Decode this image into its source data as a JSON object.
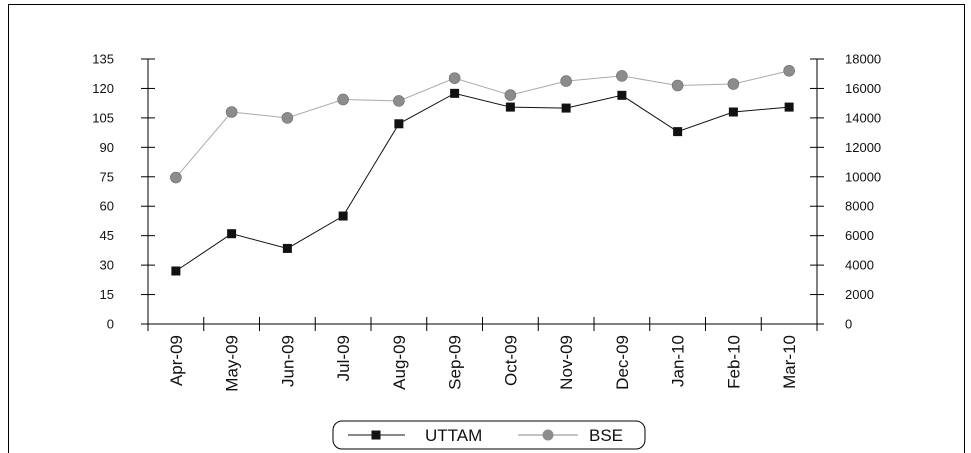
{
  "chart_data": {
    "type": "line",
    "categories": [
      "Apr-09",
      "May-09",
      "Jun-09",
      "Jul-09",
      "Aug-09",
      "Sep-09",
      "Oct-09",
      "Nov-09",
      "Dec-09",
      "Jan-10",
      "Feb-10",
      "Mar-10"
    ],
    "series": [
      {
        "name": "UTTAM",
        "axis": "left",
        "values": [
          27,
          46,
          38.5,
          55,
          102,
          117.5,
          110.5,
          110,
          116.5,
          98,
          108,
          110.5
        ],
        "color": "#111111",
        "marker": "square"
      },
      {
        "name": "BSE",
        "axis": "right",
        "values": [
          9950,
          14400,
          14000,
          15250,
          15150,
          16700,
          15550,
          16500,
          16850,
          16200,
          16300,
          17200
        ],
        "color": "#a8a8a8",
        "marker": "circle"
      }
    ],
    "y_left": {
      "ticks": [
        "0",
        "15",
        "30",
        "45",
        "60",
        "75",
        "90",
        "105",
        "120",
        "135"
      ],
      "ylim": [
        0,
        135
      ]
    },
    "y_right": {
      "ticks": [
        "0",
        "2000",
        "4000",
        "6000",
        "8000",
        "10000",
        "12000",
        "14000",
        "16000",
        "18000"
      ],
      "ylim": [
        0,
        18000
      ]
    },
    "title": "",
    "xlabel": "",
    "ylabel": "",
    "grid": false,
    "legend": "bottom-center"
  }
}
